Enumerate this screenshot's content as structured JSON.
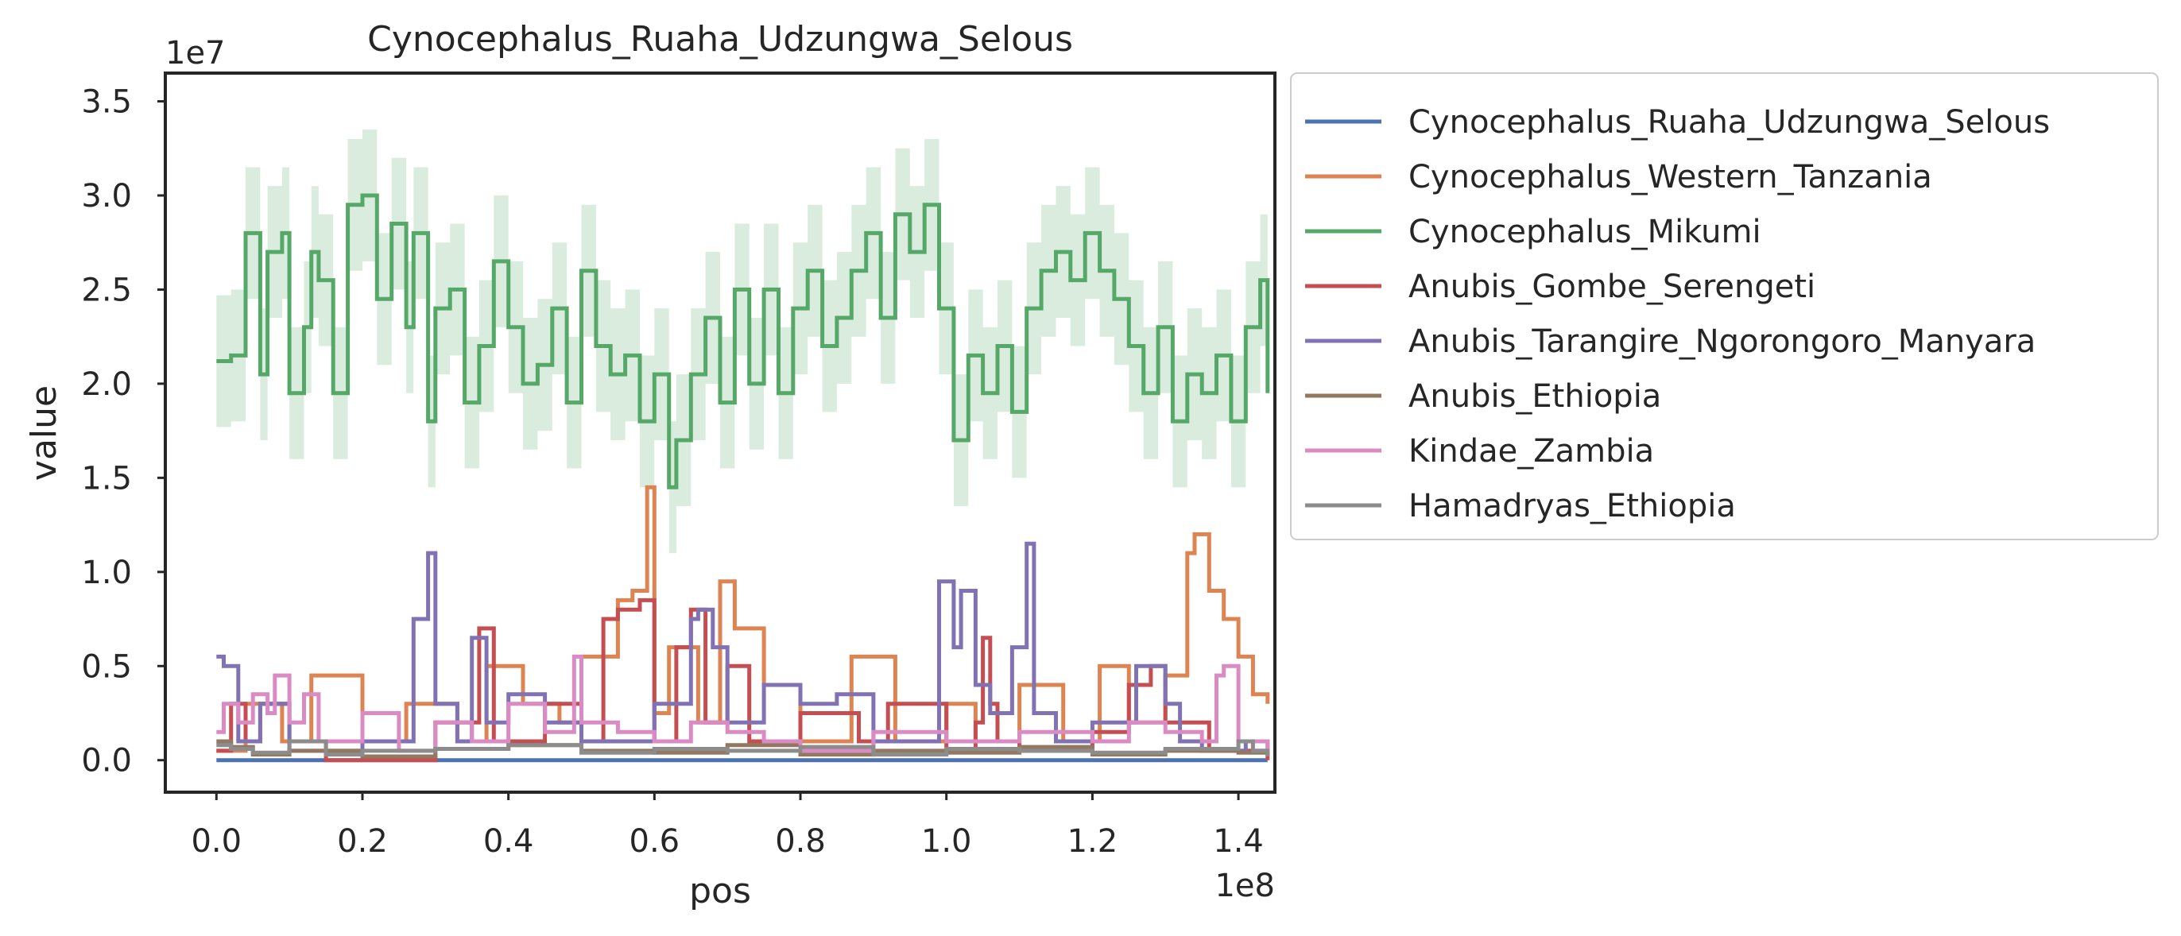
{
  "chart_data": {
    "type": "line",
    "title": "Cynocephalus_Ruaha_Udzungwa_Selous",
    "xlabel": "pos",
    "ylabel": "value",
    "x_offset_text": "1e8",
    "y_offset_text": "1e7",
    "xlim": [
      -0.07,
      1.45
    ],
    "ylim": [
      -0.17,
      3.65
    ],
    "x_ticks": [
      {
        "value": 0.0,
        "label": "0.0"
      },
      {
        "value": 0.2,
        "label": "0.2"
      },
      {
        "value": 0.4,
        "label": "0.4"
      },
      {
        "value": 0.6,
        "label": "0.6"
      },
      {
        "value": 0.8,
        "label": "0.8"
      },
      {
        "value": 1.0,
        "label": "1.0"
      },
      {
        "value": 1.2,
        "label": "1.2"
      },
      {
        "value": 1.4,
        "label": "1.4"
      }
    ],
    "y_ticks": [
      {
        "value": 0.0,
        "label": "0.0"
      },
      {
        "value": 0.5,
        "label": "0.5"
      },
      {
        "value": 1.0,
        "label": "1.0"
      },
      {
        "value": 1.5,
        "label": "1.5"
      },
      {
        "value": 2.0,
        "label": "2.0"
      },
      {
        "value": 2.5,
        "label": "2.5"
      },
      {
        "value": 3.0,
        "label": "3.0"
      },
      {
        "value": 3.5,
        "label": "3.5"
      }
    ],
    "grid": false,
    "legend_position": "outside-right",
    "line_style": "step",
    "series": [
      {
        "name": "Cynocephalus_Ruaha_Udzungwa_Selous",
        "color": "#4c72b0",
        "x": [
          0.0,
          0.2,
          0.4,
          0.6,
          0.8,
          1.0,
          1.2,
          1.44
        ],
        "y": [
          0.0,
          0.0,
          0.0,
          0.0,
          0.0,
          0.0,
          0.0,
          0.0
        ]
      },
      {
        "name": "Cynocephalus_Western_Tanzania",
        "color": "#dd8452",
        "x": [
          0.0,
          0.04,
          0.09,
          0.13,
          0.2,
          0.26,
          0.33,
          0.37,
          0.42,
          0.47,
          0.5,
          0.55,
          0.57,
          0.59,
          0.6,
          0.62,
          0.66,
          0.69,
          0.71,
          0.75,
          0.8,
          0.87,
          0.93,
          1.0,
          1.04,
          1.1,
          1.16,
          1.21,
          1.25,
          1.3,
          1.33,
          1.34,
          1.36,
          1.38,
          1.4,
          1.42,
          1.44
        ],
        "y": [
          0.05,
          0.3,
          0.1,
          0.45,
          0.1,
          0.3,
          0.1,
          0.5,
          0.3,
          0.2,
          0.55,
          0.85,
          0.9,
          1.45,
          0.25,
          0.6,
          0.2,
          0.95,
          0.7,
          0.4,
          0.1,
          0.55,
          0.1,
          0.3,
          0.1,
          0.4,
          0.1,
          0.5,
          0.2,
          0.45,
          1.1,
          1.2,
          0.9,
          0.75,
          0.55,
          0.35,
          0.3
        ]
      },
      {
        "name": "Cynocephalus_Mikumi",
        "color": "#55a868",
        "band_half_width": 0.35,
        "x": [
          0.0,
          0.02,
          0.04,
          0.06,
          0.07,
          0.09,
          0.1,
          0.12,
          0.13,
          0.14,
          0.16,
          0.18,
          0.2,
          0.22,
          0.24,
          0.26,
          0.27,
          0.29,
          0.3,
          0.32,
          0.34,
          0.36,
          0.38,
          0.4,
          0.42,
          0.44,
          0.46,
          0.48,
          0.5,
          0.52,
          0.54,
          0.56,
          0.58,
          0.6,
          0.62,
          0.63,
          0.65,
          0.67,
          0.69,
          0.71,
          0.73,
          0.75,
          0.77,
          0.79,
          0.81,
          0.83,
          0.85,
          0.87,
          0.89,
          0.91,
          0.93,
          0.95,
          0.97,
          0.99,
          1.01,
          1.03,
          1.05,
          1.07,
          1.09,
          1.11,
          1.13,
          1.15,
          1.17,
          1.19,
          1.21,
          1.23,
          1.25,
          1.27,
          1.29,
          1.31,
          1.33,
          1.35,
          1.37,
          1.39,
          1.41,
          1.43,
          1.44
        ],
        "y": [
          2.12,
          2.15,
          2.8,
          2.05,
          2.7,
          2.8,
          1.95,
          2.3,
          2.7,
          2.55,
          1.95,
          2.95,
          3.0,
          2.45,
          2.85,
          2.3,
          2.8,
          1.8,
          2.4,
          2.5,
          1.9,
          2.2,
          2.65,
          2.3,
          2.0,
          2.1,
          2.4,
          1.9,
          2.6,
          2.2,
          2.05,
          2.15,
          1.8,
          2.05,
          1.45,
          1.7,
          2.05,
          2.35,
          1.9,
          2.5,
          2.0,
          2.5,
          1.95,
          2.4,
          2.6,
          2.2,
          2.35,
          2.6,
          2.8,
          2.35,
          2.9,
          2.7,
          2.95,
          2.4,
          1.7,
          2.15,
          1.95,
          2.2,
          1.85,
          2.4,
          2.6,
          2.7,
          2.55,
          2.8,
          2.6,
          2.45,
          2.2,
          1.95,
          2.3,
          1.8,
          2.05,
          1.95,
          2.15,
          1.8,
          2.3,
          2.55,
          1.95
        ]
      },
      {
        "name": "Anubis_Gombe_Serengeti",
        "color": "#c44e52",
        "x": [
          0.0,
          0.02,
          0.04,
          0.06,
          0.1,
          0.15,
          0.3,
          0.36,
          0.38,
          0.45,
          0.5,
          0.53,
          0.55,
          0.58,
          0.6,
          0.63,
          0.65,
          0.67,
          0.7,
          0.73,
          0.8,
          0.88,
          0.92,
          1.0,
          1.04,
          1.05,
          1.06,
          1.07,
          1.1,
          1.2,
          1.25,
          1.28,
          1.3,
          1.33,
          1.36,
          1.44
        ],
        "y": [
          0.05,
          0.3,
          0.1,
          0.3,
          0.1,
          0.0,
          0.2,
          0.7,
          0.1,
          0.3,
          0.1,
          0.75,
          0.8,
          0.85,
          0.1,
          0.6,
          0.8,
          0.2,
          0.5,
          0.1,
          0.25,
          0.1,
          0.3,
          0.05,
          0.2,
          0.65,
          0.3,
          0.1,
          0.05,
          0.15,
          0.4,
          0.5,
          0.2,
          0.2,
          0.05,
          0.0
        ]
      },
      {
        "name": "Anubis_Tarangire_Ngorongoro_Manyara",
        "color": "#8172b3",
        "x": [
          0.0,
          0.01,
          0.03,
          0.06,
          0.1,
          0.2,
          0.27,
          0.29,
          0.3,
          0.33,
          0.35,
          0.37,
          0.4,
          0.45,
          0.5,
          0.55,
          0.6,
          0.65,
          0.66,
          0.68,
          0.7,
          0.75,
          0.8,
          0.85,
          0.9,
          0.99,
          1.01,
          1.02,
          1.04,
          1.06,
          1.09,
          1.11,
          1.12,
          1.15,
          1.2,
          1.26,
          1.29,
          1.3,
          1.32,
          1.35,
          1.41,
          1.44
        ],
        "y": [
          0.55,
          0.5,
          0.1,
          0.3,
          0.05,
          0.1,
          0.75,
          1.1,
          0.3,
          0.1,
          0.65,
          0.2,
          0.35,
          0.2,
          0.1,
          0.1,
          0.3,
          0.75,
          0.8,
          0.6,
          0.2,
          0.4,
          0.3,
          0.35,
          0.1,
          0.95,
          0.6,
          0.9,
          0.4,
          0.25,
          0.6,
          1.15,
          0.25,
          0.1,
          0.2,
          0.5,
          0.5,
          0.3,
          0.1,
          0.05,
          0.1,
          0.05
        ]
      },
      {
        "name": "Anubis_Ethiopia",
        "color": "#937860",
        "x": [
          0.0,
          0.02,
          0.05,
          0.1,
          0.2,
          0.3,
          0.4,
          0.5,
          0.6,
          0.7,
          0.8,
          0.9,
          1.0,
          1.1,
          1.2,
          1.3,
          1.4,
          1.44
        ],
        "y": [
          0.1,
          0.07,
          0.03,
          0.05,
          0.02,
          0.06,
          0.08,
          0.05,
          0.04,
          0.08,
          0.03,
          0.05,
          0.04,
          0.07,
          0.03,
          0.05,
          0.04,
          0.02
        ]
      },
      {
        "name": "Kindae_Zambia",
        "color": "#da8bc3",
        "x": [
          0.0,
          0.01,
          0.03,
          0.05,
          0.07,
          0.08,
          0.1,
          0.12,
          0.14,
          0.2,
          0.25,
          0.3,
          0.35,
          0.4,
          0.45,
          0.49,
          0.5,
          0.55,
          0.6,
          0.65,
          0.7,
          0.75,
          0.8,
          0.9,
          1.0,
          1.1,
          1.2,
          1.25,
          1.3,
          1.35,
          1.37,
          1.38,
          1.4,
          1.44
        ],
        "y": [
          0.15,
          0.3,
          0.2,
          0.35,
          0.25,
          0.45,
          0.2,
          0.35,
          0.1,
          0.25,
          0.05,
          0.2,
          0.1,
          0.3,
          0.15,
          0.55,
          0.2,
          0.15,
          0.1,
          0.2,
          0.15,
          0.1,
          0.05,
          0.15,
          0.1,
          0.15,
          0.1,
          0.2,
          0.15,
          0.1,
          0.45,
          0.5,
          0.1,
          0.05
        ]
      },
      {
        "name": "Hamadryas_Ethiopia",
        "color": "#8c8c8c",
        "x": [
          0.0,
          0.02,
          0.05,
          0.1,
          0.15,
          0.2,
          0.3,
          0.4,
          0.5,
          0.6,
          0.7,
          0.8,
          0.9,
          1.0,
          1.1,
          1.2,
          1.3,
          1.4,
          1.42,
          1.44
        ],
        "y": [
          0.08,
          0.06,
          0.04,
          0.1,
          0.03,
          0.05,
          0.06,
          0.08,
          0.04,
          0.06,
          0.05,
          0.07,
          0.03,
          0.06,
          0.05,
          0.04,
          0.06,
          0.1,
          0.05,
          0.02
        ]
      }
    ]
  }
}
